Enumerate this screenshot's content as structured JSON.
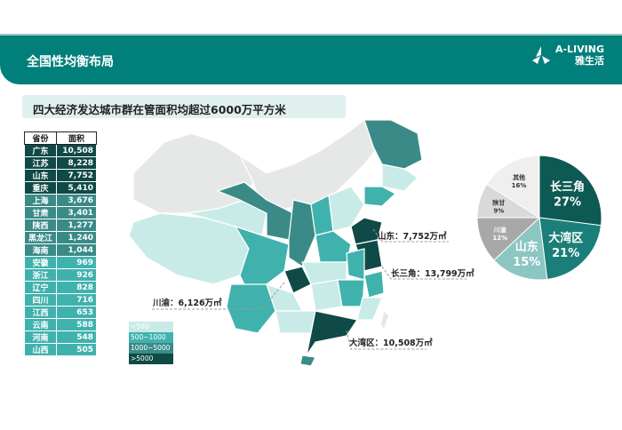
{
  "header": {
    "title": "全国性均衡布局",
    "logo_en": "A-LIVING",
    "logo_cn": "雅生活"
  },
  "subtitle": "四大经济发达城市群在管面积均超过6000万平方米",
  "table": {
    "headers": [
      "省份",
      "面积"
    ],
    "rows": [
      [
        "广东",
        "10,508"
      ],
      [
        "江苏",
        "8,228"
      ],
      [
        "山东",
        "7,752"
      ],
      [
        "重庆",
        "5,410"
      ],
      [
        "上海",
        "3,676"
      ],
      [
        "甘肃",
        "3,401"
      ],
      [
        "陕西",
        "1,277"
      ],
      [
        "黑龙江",
        "1,240"
      ],
      [
        "海南",
        "1,044"
      ],
      [
        "安徽",
        "969"
      ],
      [
        "浙江",
        "926"
      ],
      [
        "辽宁",
        "828"
      ],
      [
        "四川",
        "716"
      ],
      [
        "江西",
        "653"
      ],
      [
        "云南",
        "588"
      ],
      [
        "河南",
        "548"
      ],
      [
        "山西",
        "505"
      ]
    ]
  },
  "colors": {
    ">5000": "#0f4a46",
    "1000-5000": "#3a8b88",
    "500-1000": "#40b2ae",
    "<500": "#c8ebe7",
    "header": "#007f7b"
  },
  "legend": [
    "<500",
    "500~1000",
    "1000~5000",
    ">5000"
  ],
  "map_labels": {
    "shandong": "山东：7,752万㎡",
    "yangtze": "长三角：13,799万㎡",
    "chuanyu": "川渝：6,126万㎡",
    "gba": "大湾区：10,508万㎡"
  },
  "chart_data": {
    "type": "pie",
    "slices": [
      {
        "label": "长三角",
        "value": 27,
        "color": "#0d5a54"
      },
      {
        "label": "大湾区",
        "value": 21,
        "color": "#1a7f79"
      },
      {
        "label": "山东",
        "value": 15,
        "color": "#8cc6c2"
      },
      {
        "label": "川渝",
        "value": 12,
        "color": "#a8a8a8"
      },
      {
        "label": "陕甘",
        "value": 9,
        "color": "#d9d9d9"
      },
      {
        "label": "其他",
        "value": 16,
        "color": "#efefef"
      }
    ]
  }
}
